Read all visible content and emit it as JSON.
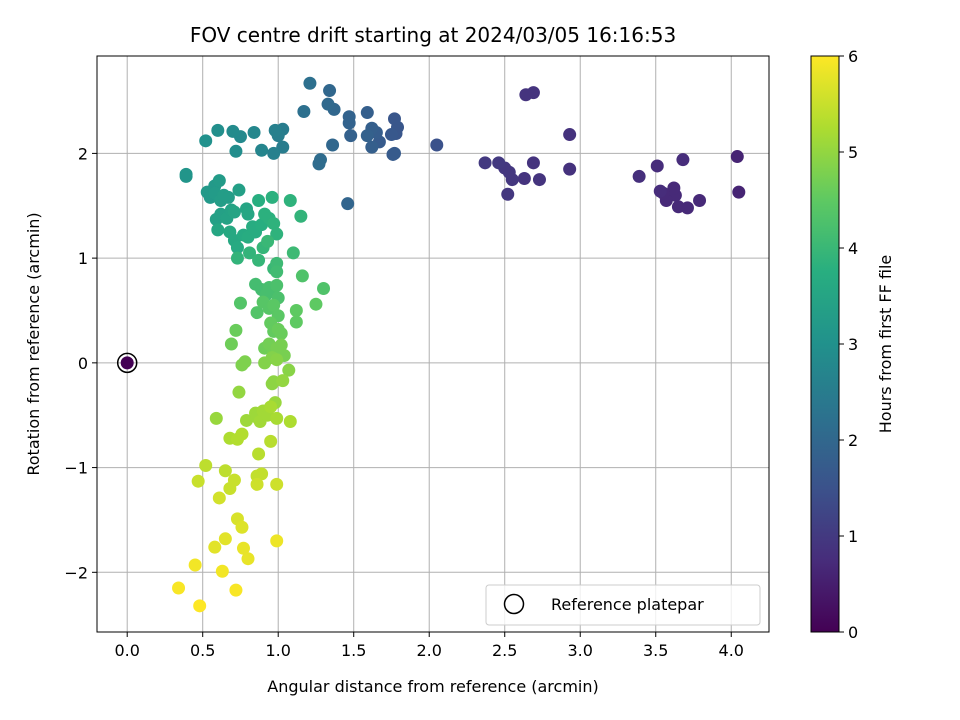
{
  "chart_data": {
    "type": "scatter",
    "title": "FOV centre drift starting at 2024/03/05 16:16:53",
    "xlabel": "Angular distance from reference (arcmin)",
    "ylabel": "Rotation from reference (arcmin)",
    "xlim": [
      -0.2,
      4.25
    ],
    "ylim": [
      -2.57,
      2.93
    ],
    "x_ticks": [
      0.0,
      0.5,
      1.0,
      1.5,
      2.0,
      2.5,
      3.0,
      3.5,
      4.0
    ],
    "x_tick_labels": [
      "0.0",
      "0.5",
      "1.0",
      "1.5",
      "2.0",
      "2.5",
      "3.0",
      "3.5",
      "4.0"
    ],
    "y_ticks": [
      -2,
      -1,
      0,
      1,
      2
    ],
    "y_tick_labels": [
      "−2",
      "−1",
      "0",
      "1",
      "2"
    ],
    "grid": true,
    "colormap": "viridis",
    "colorbar": {
      "label": "Hours from first FF file",
      "range": [
        0,
        6
      ],
      "ticks": [
        0,
        1,
        2,
        3,
        4,
        5,
        6
      ],
      "tick_labels": [
        "0",
        "1",
        "2",
        "3",
        "4",
        "5",
        "6"
      ]
    },
    "legend": {
      "position": "lower-right",
      "entries": [
        "Reference platepar"
      ]
    },
    "reference_point": {
      "x": 0.0,
      "y": 0.0
    },
    "points": [
      {
        "x": 0.0,
        "y": 0.0,
        "c": 0.0
      },
      {
        "x": 4.04,
        "y": 1.97,
        "c": 0.6
      },
      {
        "x": 4.05,
        "y": 1.63,
        "c": 0.6
      },
      {
        "x": 3.79,
        "y": 1.55,
        "c": 0.7
      },
      {
        "x": 3.71,
        "y": 1.48,
        "c": 0.7
      },
      {
        "x": 3.65,
        "y": 1.49,
        "c": 0.7
      },
      {
        "x": 3.63,
        "y": 1.6,
        "c": 0.7
      },
      {
        "x": 3.62,
        "y": 1.67,
        "c": 0.7
      },
      {
        "x": 3.57,
        "y": 1.55,
        "c": 0.7
      },
      {
        "x": 3.55,
        "y": 1.62,
        "c": 0.7
      },
      {
        "x": 3.53,
        "y": 1.64,
        "c": 0.75
      },
      {
        "x": 3.51,
        "y": 1.88,
        "c": 0.75
      },
      {
        "x": 3.68,
        "y": 1.94,
        "c": 0.75
      },
      {
        "x": 3.39,
        "y": 1.78,
        "c": 0.8
      },
      {
        "x": 2.93,
        "y": 2.18,
        "c": 0.85
      },
      {
        "x": 2.93,
        "y": 1.85,
        "c": 0.85
      },
      {
        "x": 2.73,
        "y": 1.75,
        "c": 0.9
      },
      {
        "x": 2.69,
        "y": 1.91,
        "c": 0.9
      },
      {
        "x": 2.69,
        "y": 2.58,
        "c": 0.9
      },
      {
        "x": 2.64,
        "y": 2.56,
        "c": 0.9
      },
      {
        "x": 2.63,
        "y": 1.76,
        "c": 0.9
      },
      {
        "x": 2.55,
        "y": 1.75,
        "c": 0.95
      },
      {
        "x": 2.53,
        "y": 1.82,
        "c": 0.95
      },
      {
        "x": 2.52,
        "y": 1.61,
        "c": 0.95
      },
      {
        "x": 2.5,
        "y": 1.86,
        "c": 0.95
      },
      {
        "x": 2.46,
        "y": 1.91,
        "c": 1.0
      },
      {
        "x": 2.37,
        "y": 1.91,
        "c": 1.0
      },
      {
        "x": 2.05,
        "y": 2.08,
        "c": 1.5
      },
      {
        "x": 1.78,
        "y": 2.19,
        "c": 1.6
      },
      {
        "x": 1.79,
        "y": 2.25,
        "c": 1.6
      },
      {
        "x": 1.77,
        "y": 2.33,
        "c": 1.6
      },
      {
        "x": 1.75,
        "y": 2.18,
        "c": 1.65
      },
      {
        "x": 1.77,
        "y": 2.0,
        "c": 1.7
      },
      {
        "x": 1.76,
        "y": 1.99,
        "c": 1.7
      },
      {
        "x": 1.67,
        "y": 2.11,
        "c": 1.7
      },
      {
        "x": 1.65,
        "y": 2.2,
        "c": 1.75
      },
      {
        "x": 1.62,
        "y": 2.06,
        "c": 1.8
      },
      {
        "x": 1.62,
        "y": 2.24,
        "c": 1.8
      },
      {
        "x": 1.59,
        "y": 2.39,
        "c": 1.8
      },
      {
        "x": 1.59,
        "y": 2.17,
        "c": 1.85
      },
      {
        "x": 1.48,
        "y": 2.17,
        "c": 1.85
      },
      {
        "x": 1.47,
        "y": 2.29,
        "c": 1.9
      },
      {
        "x": 1.47,
        "y": 2.35,
        "c": 1.9
      },
      {
        "x": 1.46,
        "y": 1.52,
        "c": 1.95
      },
      {
        "x": 1.37,
        "y": 2.42,
        "c": 2.0
      },
      {
        "x": 1.36,
        "y": 2.08,
        "c": 2.0
      },
      {
        "x": 1.34,
        "y": 2.6,
        "c": 2.0
      },
      {
        "x": 1.33,
        "y": 2.47,
        "c": 2.05
      },
      {
        "x": 1.28,
        "y": 1.94,
        "c": 2.1
      },
      {
        "x": 1.27,
        "y": 1.9,
        "c": 2.1
      },
      {
        "x": 1.21,
        "y": 2.67,
        "c": 2.2
      },
      {
        "x": 1.17,
        "y": 2.4,
        "c": 2.2
      },
      {
        "x": 1.03,
        "y": 2.23,
        "c": 2.5
      },
      {
        "x": 1.03,
        "y": 2.06,
        "c": 2.5
      },
      {
        "x": 1.0,
        "y": 2.17,
        "c": 2.55
      },
      {
        "x": 0.98,
        "y": 2.22,
        "c": 2.6
      },
      {
        "x": 0.97,
        "y": 2.0,
        "c": 2.6
      },
      {
        "x": 0.89,
        "y": 2.03,
        "c": 2.7
      },
      {
        "x": 0.84,
        "y": 2.2,
        "c": 2.75
      },
      {
        "x": 0.75,
        "y": 2.16,
        "c": 2.8
      },
      {
        "x": 0.7,
        "y": 2.21,
        "c": 2.85
      },
      {
        "x": 0.72,
        "y": 2.02,
        "c": 2.9
      },
      {
        "x": 0.6,
        "y": 2.22,
        "c": 2.95
      },
      {
        "x": 0.52,
        "y": 2.12,
        "c": 3.0
      },
      {
        "x": 0.39,
        "y": 1.78,
        "c": 3.1
      },
      {
        "x": 0.39,
        "y": 1.8,
        "c": 3.1
      },
      {
        "x": 0.53,
        "y": 1.63,
        "c": 3.2
      },
      {
        "x": 0.55,
        "y": 1.58,
        "c": 3.2
      },
      {
        "x": 0.58,
        "y": 1.69,
        "c": 3.2
      },
      {
        "x": 0.61,
        "y": 1.74,
        "c": 3.25
      },
      {
        "x": 0.58,
        "y": 1.62,
        "c": 3.25
      },
      {
        "x": 0.62,
        "y": 1.55,
        "c": 3.3
      },
      {
        "x": 0.64,
        "y": 1.6,
        "c": 3.3
      },
      {
        "x": 0.67,
        "y": 1.58,
        "c": 3.3
      },
      {
        "x": 0.74,
        "y": 1.65,
        "c": 3.35
      },
      {
        "x": 0.59,
        "y": 1.37,
        "c": 3.4
      },
      {
        "x": 0.62,
        "y": 1.42,
        "c": 3.4
      },
      {
        "x": 0.66,
        "y": 1.38,
        "c": 3.45
      },
      {
        "x": 0.69,
        "y": 1.46,
        "c": 3.45
      },
      {
        "x": 0.71,
        "y": 1.44,
        "c": 3.5
      },
      {
        "x": 0.79,
        "y": 1.47,
        "c": 3.5
      },
      {
        "x": 0.8,
        "y": 1.42,
        "c": 3.55
      },
      {
        "x": 0.6,
        "y": 1.27,
        "c": 3.55
      },
      {
        "x": 0.68,
        "y": 1.25,
        "c": 3.6
      },
      {
        "x": 0.71,
        "y": 1.17,
        "c": 3.6
      },
      {
        "x": 0.73,
        "y": 1.1,
        "c": 3.65
      },
      {
        "x": 0.77,
        "y": 1.22,
        "c": 3.65
      },
      {
        "x": 0.8,
        "y": 1.2,
        "c": 3.7
      },
      {
        "x": 0.83,
        "y": 1.3,
        "c": 3.7
      },
      {
        "x": 0.85,
        "y": 1.25,
        "c": 3.7
      },
      {
        "x": 0.87,
        "y": 1.55,
        "c": 3.75
      },
      {
        "x": 0.89,
        "y": 1.32,
        "c": 3.75
      },
      {
        "x": 0.91,
        "y": 1.42,
        "c": 3.8
      },
      {
        "x": 0.94,
        "y": 1.38,
        "c": 3.8
      },
      {
        "x": 0.96,
        "y": 1.58,
        "c": 3.8
      },
      {
        "x": 0.97,
        "y": 1.33,
        "c": 3.85
      },
      {
        "x": 0.99,
        "y": 1.23,
        "c": 3.85
      },
      {
        "x": 1.08,
        "y": 1.55,
        "c": 3.85
      },
      {
        "x": 1.15,
        "y": 1.4,
        "c": 3.9
      },
      {
        "x": 0.73,
        "y": 1.0,
        "c": 3.9
      },
      {
        "x": 0.81,
        "y": 1.05,
        "c": 3.9
      },
      {
        "x": 0.87,
        "y": 0.98,
        "c": 3.95
      },
      {
        "x": 0.9,
        "y": 1.1,
        "c": 3.95
      },
      {
        "x": 0.93,
        "y": 1.16,
        "c": 4.0
      },
      {
        "x": 0.97,
        "y": 0.9,
        "c": 4.0
      },
      {
        "x": 0.99,
        "y": 0.95,
        "c": 4.05
      },
      {
        "x": 1.1,
        "y": 1.05,
        "c": 4.05
      },
      {
        "x": 0.99,
        "y": 0.87,
        "c": 4.1
      },
      {
        "x": 0.85,
        "y": 0.75,
        "c": 4.15
      },
      {
        "x": 0.89,
        "y": 0.7,
        "c": 4.15
      },
      {
        "x": 0.92,
        "y": 0.65,
        "c": 4.2
      },
      {
        "x": 0.94,
        "y": 0.72,
        "c": 4.2
      },
      {
        "x": 0.96,
        "y": 0.68,
        "c": 4.2
      },
      {
        "x": 0.99,
        "y": 0.74,
        "c": 4.25
      },
      {
        "x": 1.0,
        "y": 0.62,
        "c": 4.25
      },
      {
        "x": 1.16,
        "y": 0.83,
        "c": 4.3
      },
      {
        "x": 1.3,
        "y": 0.71,
        "c": 4.3
      },
      {
        "x": 0.75,
        "y": 0.57,
        "c": 4.35
      },
      {
        "x": 0.86,
        "y": 0.48,
        "c": 4.35
      },
      {
        "x": 0.9,
        "y": 0.58,
        "c": 4.4
      },
      {
        "x": 0.94,
        "y": 0.52,
        "c": 4.4
      },
      {
        "x": 0.97,
        "y": 0.55,
        "c": 4.45
      },
      {
        "x": 1.0,
        "y": 0.45,
        "c": 4.45
      },
      {
        "x": 1.12,
        "y": 0.5,
        "c": 4.5
      },
      {
        "x": 1.12,
        "y": 0.39,
        "c": 4.5
      },
      {
        "x": 1.25,
        "y": 0.56,
        "c": 4.5
      },
      {
        "x": 0.95,
        "y": 0.38,
        "c": 4.55
      },
      {
        "x": 0.97,
        "y": 0.3,
        "c": 4.55
      },
      {
        "x": 1.0,
        "y": 0.32,
        "c": 4.6
      },
      {
        "x": 1.02,
        "y": 0.28,
        "c": 4.6
      },
      {
        "x": 0.72,
        "y": 0.31,
        "c": 4.6
      },
      {
        "x": 0.69,
        "y": 0.18,
        "c": 4.65
      },
      {
        "x": 0.91,
        "y": 0.14,
        "c": 4.65
      },
      {
        "x": 0.94,
        "y": 0.18,
        "c": 4.7
      },
      {
        "x": 0.97,
        "y": 0.1,
        "c": 4.7
      },
      {
        "x": 0.99,
        "y": 0.14,
        "c": 4.75
      },
      {
        "x": 1.02,
        "y": 0.17,
        "c": 4.75
      },
      {
        "x": 1.04,
        "y": 0.07,
        "c": 4.75
      },
      {
        "x": 0.76,
        "y": -0.02,
        "c": 4.8
      },
      {
        "x": 0.78,
        "y": 0.01,
        "c": 4.8
      },
      {
        "x": 0.91,
        "y": 0.0,
        "c": 4.85
      },
      {
        "x": 0.96,
        "y": 0.05,
        "c": 4.85
      },
      {
        "x": 0.99,
        "y": 0.03,
        "c": 4.9
      },
      {
        "x": 1.07,
        "y": -0.07,
        "c": 4.9
      },
      {
        "x": 0.97,
        "y": -0.18,
        "c": 4.95
      },
      {
        "x": 0.96,
        "y": -0.2,
        "c": 4.95
      },
      {
        "x": 1.03,
        "y": -0.17,
        "c": 5.0
      },
      {
        "x": 0.74,
        "y": -0.28,
        "c": 5.0
      },
      {
        "x": 0.98,
        "y": -0.38,
        "c": 5.05
      },
      {
        "x": 0.59,
        "y": -0.53,
        "c": 5.05
      },
      {
        "x": 0.79,
        "y": -0.55,
        "c": 5.1
      },
      {
        "x": 0.85,
        "y": -0.48,
        "c": 5.1
      },
      {
        "x": 0.86,
        "y": -0.52,
        "c": 5.1
      },
      {
        "x": 0.88,
        "y": -0.56,
        "c": 5.15
      },
      {
        "x": 0.9,
        "y": -0.46,
        "c": 5.15
      },
      {
        "x": 0.93,
        "y": -0.5,
        "c": 5.15
      },
      {
        "x": 0.95,
        "y": -0.42,
        "c": 5.2
      },
      {
        "x": 0.99,
        "y": -0.53,
        "c": 5.2
      },
      {
        "x": 1.08,
        "y": -0.56,
        "c": 5.25
      },
      {
        "x": 0.68,
        "y": -0.72,
        "c": 5.25
      },
      {
        "x": 0.73,
        "y": -0.73,
        "c": 5.3
      },
      {
        "x": 0.76,
        "y": -0.68,
        "c": 5.3
      },
      {
        "x": 0.95,
        "y": -0.75,
        "c": 5.35
      },
      {
        "x": 0.87,
        "y": -0.87,
        "c": 5.35
      },
      {
        "x": 0.52,
        "y": -0.98,
        "c": 5.4
      },
      {
        "x": 0.65,
        "y": -1.03,
        "c": 5.4
      },
      {
        "x": 0.89,
        "y": -1.06,
        "c": 5.45
      },
      {
        "x": 0.86,
        "y": -1.08,
        "c": 5.45
      },
      {
        "x": 0.47,
        "y": -1.13,
        "c": 5.5
      },
      {
        "x": 0.71,
        "y": -1.12,
        "c": 5.5
      },
      {
        "x": 0.68,
        "y": -1.2,
        "c": 5.5
      },
      {
        "x": 0.86,
        "y": -1.16,
        "c": 5.55
      },
      {
        "x": 0.99,
        "y": -1.16,
        "c": 5.55
      },
      {
        "x": 0.61,
        "y": -1.29,
        "c": 5.6
      },
      {
        "x": 0.73,
        "y": -1.49,
        "c": 5.65
      },
      {
        "x": 0.76,
        "y": -1.57,
        "c": 5.7
      },
      {
        "x": 0.65,
        "y": -1.68,
        "c": 5.75
      },
      {
        "x": 0.58,
        "y": -1.76,
        "c": 5.75
      },
      {
        "x": 0.77,
        "y": -1.77,
        "c": 5.8
      },
      {
        "x": 0.8,
        "y": -1.87,
        "c": 5.8
      },
      {
        "x": 0.99,
        "y": -1.7,
        "c": 5.85
      },
      {
        "x": 0.45,
        "y": -1.93,
        "c": 5.9
      },
      {
        "x": 0.63,
        "y": -1.99,
        "c": 5.9
      },
      {
        "x": 0.34,
        "y": -2.15,
        "c": 5.95
      },
      {
        "x": 0.72,
        "y": -2.17,
        "c": 5.95
      },
      {
        "x": 0.48,
        "y": -2.32,
        "c": 6.0
      }
    ]
  }
}
